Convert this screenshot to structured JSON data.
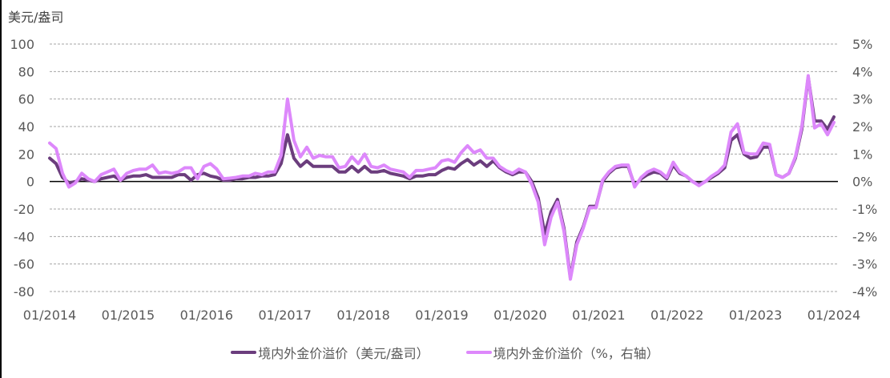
{
  "chart_data": {
    "type": "line",
    "title": "",
    "left_axis_unit_label": "美元/盎司",
    "xlabel": "",
    "ylabel_left": "美元/盎司",
    "ylabel_right": "%",
    "ylim_left": [
      -80,
      100
    ],
    "ylim_right": [
      -4,
      5
    ],
    "yticks_left": [
      "100",
      "80",
      "60",
      "40",
      "20",
      "0",
      "-20",
      "-40",
      "-60",
      "-80"
    ],
    "yticks_right": [
      "5%",
      "4%",
      "3%",
      "2%",
      "1%",
      "0%",
      "-1%",
      "-2%",
      "-3%",
      "-4%"
    ],
    "xticks": [
      "01/2014",
      "01/2015",
      "01/2016",
      "01/2017",
      "01/2018",
      "01/2019",
      "01/2020",
      "01/2021",
      "01/2022",
      "01/2023",
      "01/2024"
    ],
    "x_start": "2014-01",
    "x_end": "2024-01",
    "frequency": "monthly",
    "grid": "horizontal dashed",
    "legend_position": "bottom",
    "series": [
      {
        "name": "境内外金价溢价（美元/盎司）",
        "axis": "left",
        "color": "#6b3d7d",
        "values": [
          17,
          13,
          3,
          -1,
          0,
          2,
          1,
          0,
          2,
          3,
          4,
          1,
          3,
          4,
          4,
          5,
          3,
          3,
          3,
          3,
          5,
          5,
          1,
          5,
          6,
          4,
          3,
          1,
          1,
          2,
          2,
          3,
          3,
          4,
          4,
          5,
          13,
          34,
          17,
          11,
          15,
          11,
          11,
          11,
          11,
          7,
          7,
          11,
          7,
          11,
          7,
          7,
          8,
          6,
          5,
          4,
          2,
          4,
          4,
          5,
          5,
          8,
          10,
          9,
          13,
          16,
          12,
          15,
          11,
          15,
          10,
          7,
          5,
          7,
          7,
          0,
          -12,
          -38,
          -22,
          -13,
          -34,
          -70,
          -44,
          -33,
          -18,
          -18,
          0,
          6,
          10,
          11,
          11,
          -3,
          2,
          5,
          7,
          6,
          2,
          12,
          6,
          4,
          0,
          -2,
          0,
          3,
          6,
          10,
          30,
          34,
          20,
          17,
          18,
          25,
          25,
          5,
          3,
          6,
          17,
          38,
          76,
          44,
          44,
          38,
          47
        ]
      },
      {
        "name": "境内外金价溢价（%，右轴）",
        "axis": "right",
        "color": "#dd88fb",
        "values": [
          1.4,
          1.2,
          0.3,
          -0.2,
          -0.05,
          0.3,
          0.1,
          0.0,
          0.25,
          0.35,
          0.45,
          0.05,
          0.3,
          0.4,
          0.45,
          0.45,
          0.6,
          0.3,
          0.35,
          0.3,
          0.35,
          0.5,
          0.5,
          0.1,
          0.55,
          0.65,
          0.45,
          0.1,
          0.12,
          0.15,
          0.2,
          0.2,
          0.3,
          0.25,
          0.35,
          0.35,
          0.95,
          3.0,
          1.5,
          0.9,
          1.25,
          0.85,
          0.95,
          0.9,
          0.9,
          0.5,
          0.55,
          0.9,
          0.65,
          1.0,
          0.55,
          0.5,
          0.6,
          0.45,
          0.4,
          0.35,
          0.15,
          0.4,
          0.4,
          0.45,
          0.5,
          0.75,
          0.8,
          0.7,
          1.05,
          1.3,
          1.05,
          1.15,
          0.85,
          0.85,
          0.55,
          0.4,
          0.3,
          0.45,
          0.35,
          -0.1,
          -0.75,
          -2.3,
          -1.3,
          -0.75,
          -1.8,
          -3.55,
          -2.3,
          -1.7,
          -0.95,
          -0.95,
          0.05,
          0.35,
          0.55,
          0.6,
          0.6,
          -0.2,
          0.15,
          0.35,
          0.45,
          0.35,
          0.15,
          0.7,
          0.35,
          0.2,
          0.0,
          -0.15,
          0.0,
          0.2,
          0.35,
          0.6,
          1.8,
          2.1,
          1.05,
          1.0,
          1.0,
          1.4,
          1.35,
          0.25,
          0.15,
          0.3,
          0.9,
          2.0,
          3.85,
          1.95,
          2.1,
          1.7,
          2.15
        ]
      }
    ]
  },
  "legend": {
    "items": [
      {
        "label": "境内外金价溢价（美元/盎司）",
        "color": "#6b3d7d"
      },
      {
        "label": "境内外金价溢价（%，右轴）",
        "color": "#dd88fb"
      }
    ]
  }
}
